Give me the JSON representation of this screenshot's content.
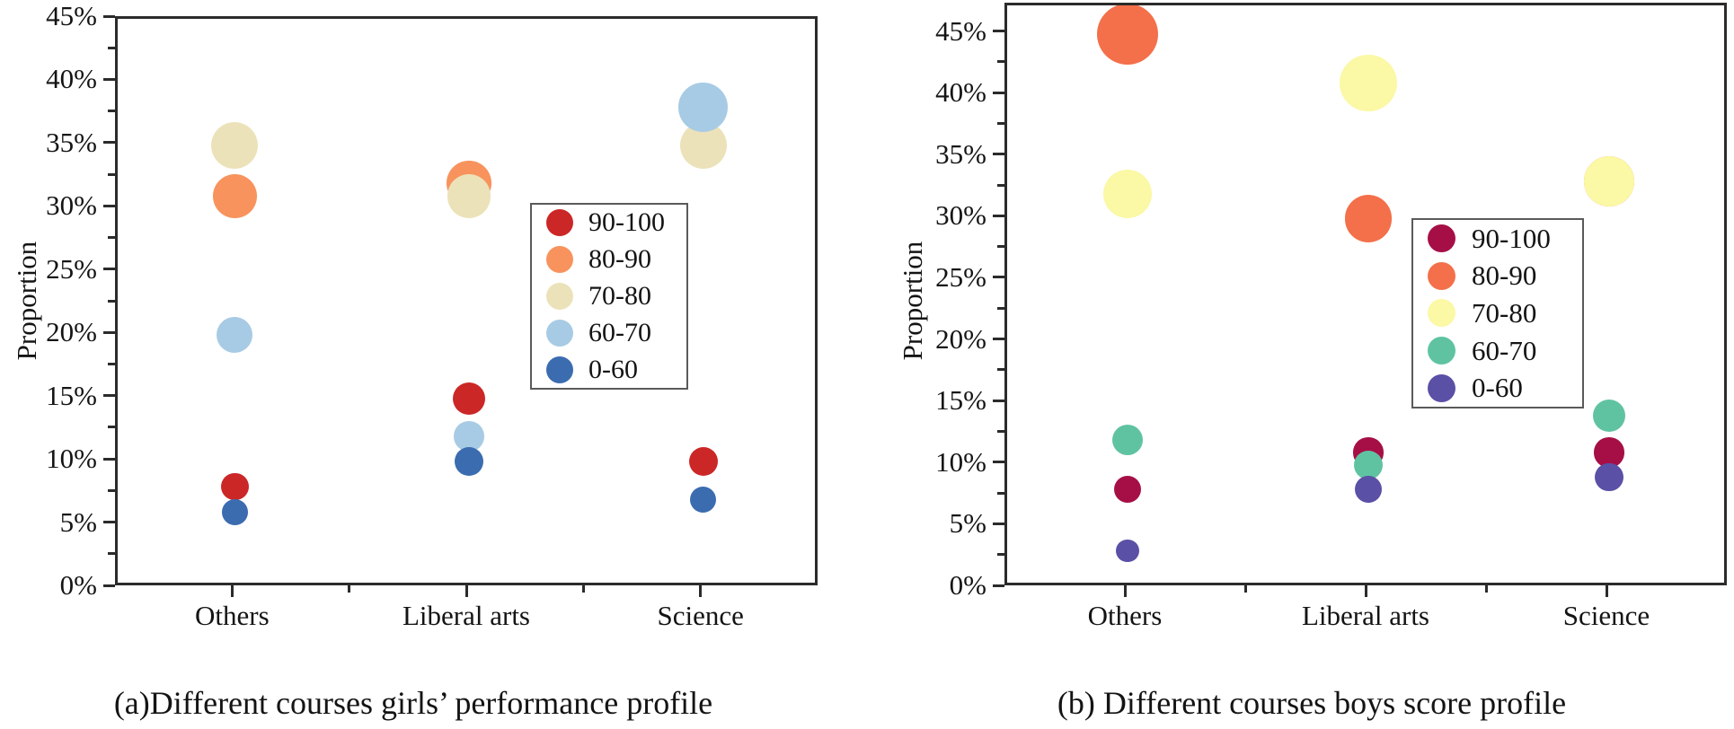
{
  "chart_data": [
    {
      "type": "scatter",
      "variant": "bubble",
      "caption": "(a)Different courses girls’ performance profile",
      "ylabel": "Proportion",
      "categories": [
        "Others",
        "Liberal arts",
        "Science"
      ],
      "y_tick_labels": [
        "0%",
        "5%",
        "10%",
        "15%",
        "20%",
        "25%",
        "30%",
        "35%",
        "40%",
        "45%"
      ],
      "ylim": [
        0,
        45
      ],
      "grid": false,
      "legend_position": "inside-center-right",
      "legend": [
        "90-100",
        "80-90",
        "70-80",
        "60-70",
        "0-60"
      ],
      "series": [
        {
          "name": "90-100",
          "color": "#cb2727",
          "values": [
            8,
            15,
            10
          ]
        },
        {
          "name": "80-90",
          "color": "#f8935d",
          "values": [
            31,
            32,
            null
          ]
        },
        {
          "name": "70-80",
          "color": "#ece2b9",
          "values": [
            35,
            31,
            35
          ]
        },
        {
          "name": "60-70",
          "color": "#a7cbe4",
          "values": [
            20,
            12,
            38
          ]
        },
        {
          "name": "0-60",
          "color": "#3b6cb0",
          "values": [
            6,
            10,
            7
          ]
        }
      ]
    },
    {
      "type": "scatter",
      "variant": "bubble",
      "caption": "(b) Different courses boys score profile",
      "ylabel": "Proportion",
      "categories": [
        "Others",
        "Liberal arts",
        "Science"
      ],
      "y_tick_labels": [
        "0%",
        "5%",
        "10%",
        "15%",
        "20%",
        "25%",
        "30%",
        "35%",
        "40%",
        "45%"
      ],
      "ylim": [
        0,
        47.3
      ],
      "grid": false,
      "legend_position": "inside-center-right",
      "legend": [
        "90-100",
        "80-90",
        "70-80",
        "60-70",
        "0-60"
      ],
      "series": [
        {
          "name": "90-100",
          "color": "#a60f46",
          "values": [
            8,
            11,
            11
          ]
        },
        {
          "name": "80-90",
          "color": "#f3704a",
          "values": [
            45,
            30,
            33
          ]
        },
        {
          "name": "70-80",
          "color": "#fbf8a6",
          "values": [
            32,
            41,
            33
          ]
        },
        {
          "name": "60-70",
          "color": "#5fc3a2",
          "values": [
            12,
            10,
            14
          ]
        },
        {
          "name": "0-60",
          "color": "#5a50a6",
          "values": [
            3,
            8,
            9
          ]
        }
      ]
    }
  ]
}
